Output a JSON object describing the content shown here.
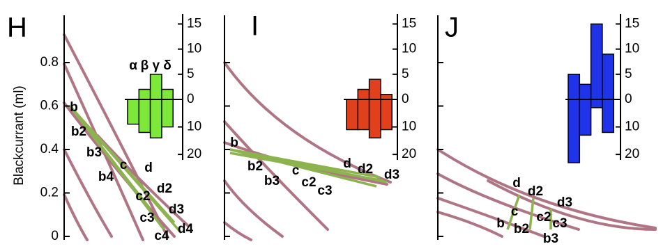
{
  "chart_data": [
    {
      "type": "bar",
      "title": "H",
      "y_label": "Blackcurrant (ml)",
      "y_main_lim": [
        0,
        1
      ],
      "y_main_ticks": [
        0,
        0.2,
        0.4,
        0.6,
        0.8
      ],
      "point_labels": [
        "b",
        "b2",
        "b3",
        "b4",
        "c",
        "d",
        "c2",
        "d2",
        "c3",
        "d3",
        "d4",
        "c4"
      ],
      "categories": [
        "α",
        "β",
        "γ",
        "δ"
      ],
      "high": [
        0,
        2,
        5,
        2
      ],
      "low": [
        -9,
        -12,
        -14,
        -10
      ],
      "color": "#7ee83a",
      "ylim": [
        -22,
        17
      ],
      "yticks": [
        15,
        10,
        5,
        0,
        {
          "value": -10,
          "label": "10"
        },
        {
          "value": -20,
          "label": "20"
        }
      ]
    },
    {
      "type": "bar",
      "title": "I",
      "point_labels": [
        "b",
        "b2",
        "b3",
        "c",
        "c2",
        "c3",
        "d",
        "d2",
        "d3"
      ],
      "categories": [
        null,
        null,
        null,
        null
      ],
      "high": [
        0,
        2,
        4,
        1
      ],
      "low": [
        -11,
        -11,
        -14,
        -11
      ],
      "color": "#e0401c",
      "ylim": [
        -22,
        17
      ],
      "yticks": [
        15,
        10,
        5,
        0,
        {
          "value": -10,
          "label": "10"
        },
        {
          "value": -20,
          "label": "20"
        }
      ]
    },
    {
      "type": "bar",
      "title": "J",
      "point_labels": [
        "d",
        "d2",
        "d3",
        "c",
        "c2",
        "c3",
        "b",
        "b2",
        "b3"
      ],
      "categories": [
        null,
        null,
        null,
        null
      ],
      "high": [
        5,
        3,
        15,
        9
      ],
      "low": [
        -23,
        -13,
        -3,
        -12
      ],
      "color": "#1f33e8",
      "ylim": [
        -22,
        17
      ],
      "yticks": [
        15,
        10,
        5,
        0,
        {
          "value": -10,
          "label": "10"
        },
        {
          "value": -20,
          "label": "20"
        }
      ]
    }
  ]
}
